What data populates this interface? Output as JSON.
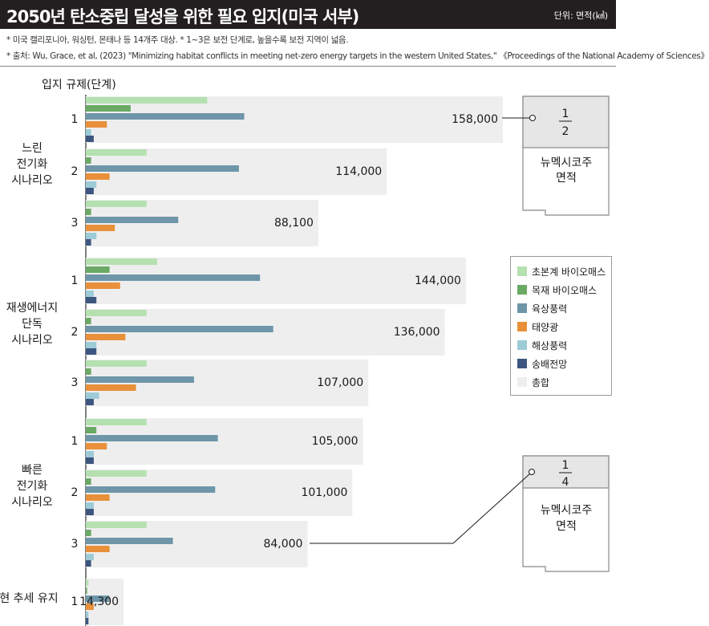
{
  "header": {
    "title": "2050년 탄소중립 달성을 위한 필요 입지(미국 서부)",
    "unit": "단위: 면적(㎢)"
  },
  "notes": {
    "line1": "* 미국 캘리포니아, 워싱턴, 몬태나 등 14개주 대상.   * 1~3은 보전 단계로, 높을수록 보전 지역이 넓음.",
    "line2": "* 출처: Wu, Grace, et al, (2023) \"Minimizing habitat conflicts in meeting net-zero energy targets in the western United States,\" 《Proceedings of the National Academy of Sciences》"
  },
  "callouts": [
    {
      "fraction_num": "1",
      "fraction_den": "2",
      "label_line1": "뉴멕시코주",
      "label_line2": "면적"
    },
    {
      "fraction_num": "1",
      "fraction_den": "4",
      "label_line1": "뉴멕시코주",
      "label_line2": "면적"
    }
  ],
  "colors": {
    "total": "#eeeeee",
    "초본계 바이오매스": "#b5e0b0",
    "목재 바이오매스": "#6aaa64",
    "육상풍력": "#6e96a8",
    "태양광": "#e8903a",
    "해상풍력": "#9dcbd6",
    "송배전망": "#3d5680"
  },
  "chart_data": {
    "type": "bar",
    "orientation": "horizontal",
    "title": "2050년 탄소중립 달성을 위한 필요 입지(미국 서부)",
    "axis_title": "입지 규제(단계)",
    "unit": "㎢",
    "groups": [
      {
        "name_lines": [
          "느린",
          "전기화",
          "시나리오"
        ],
        "levels": [
          "1",
          "2",
          "3"
        ]
      },
      {
        "name_lines": [
          "재생에너지",
          "단독",
          "시나리오"
        ],
        "levels": [
          "1",
          "2",
          "3"
        ]
      },
      {
        "name_lines": [
          "빠른",
          "전기화",
          "시나리오"
        ],
        "levels": [
          "1",
          "2",
          "3"
        ]
      },
      {
        "name_lines": [
          "현 추세 유지"
        ],
        "levels": [
          "1"
        ]
      }
    ],
    "totals": [
      158000,
      114000,
      88100,
      144000,
      136000,
      107000,
      105000,
      101000,
      84000,
      14300
    ],
    "total_labels": [
      "158,000",
      "114,000",
      "88,100",
      "144,000",
      "136,000",
      "107,000",
      "105,000",
      "101,000",
      "84,000",
      "14,300"
    ],
    "series": [
      {
        "name": "초본계 바이오매스",
        "values": [
          46000,
          23000,
          23000,
          27000,
          23000,
          23000,
          23000,
          23000,
          23000,
          1000
        ]
      },
      {
        "name": "목재 바이오매스",
        "values": [
          17000,
          2000,
          2000,
          9000,
          2000,
          2000,
          4000,
          2000,
          2000,
          500
        ]
      },
      {
        "name": "육상풍력",
        "values": [
          60000,
          58000,
          35000,
          66000,
          71000,
          41000,
          50000,
          49000,
          33000,
          9000
        ]
      },
      {
        "name": "태양광",
        "values": [
          8000,
          9000,
          11000,
          13000,
          15000,
          19000,
          8000,
          9000,
          9000,
          3000
        ]
      },
      {
        "name": "해상풍력",
        "values": [
          2000,
          4000,
          4000,
          3000,
          4000,
          5000,
          3000,
          3000,
          3000,
          1000
        ]
      },
      {
        "name": "송배전망",
        "values": [
          3000,
          3000,
          2000,
          4000,
          4000,
          3000,
          3000,
          3000,
          2000,
          1000
        ]
      }
    ],
    "legend": {
      "placement": "right",
      "items": [
        "초본계 바이오매스",
        "목재 바이오매스",
        "육상풍력",
        "태양광",
        "해상풍력",
        "송배전망",
        "총합"
      ]
    }
  }
}
